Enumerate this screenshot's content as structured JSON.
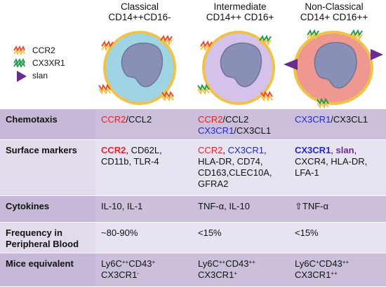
{
  "legend": {
    "items": [
      {
        "label": "CCR2",
        "icon": "ccr2-receptor-icon"
      },
      {
        "label": "CX3XR1",
        "icon": "cx3cr1-receptor-icon"
      },
      {
        "label": "slan",
        "icon": "slan-triangle-icon"
      }
    ]
  },
  "subsets": [
    {
      "name": "Classical",
      "phenotype": "CD14++CD16-"
    },
    {
      "name": "Intermediate",
      "phenotype": "CD14++ CD16+"
    },
    {
      "name": "Non-Classical",
      "phenotype": "CD14+ CD16++"
    }
  ],
  "colors": {
    "classical_cytoplasm": "#9fd4e4",
    "intermediate_cytoplasm": "#d4c2ea",
    "nonclassical_cytoplasm": "#ef9890",
    "nucleus": "#8a8fb8",
    "membrane": "#f0c24a",
    "ccr2": "#e64b2a",
    "cx3cr1": "#1f9a4a",
    "slan": "#6a2c8e",
    "row_dark": "#cbbfdc",
    "row_light": "#e8e3f0",
    "text_red": "#e8232a",
    "text_blue": "#1f2bcc"
  },
  "table": {
    "chemotaxis": {
      "header": "Chemotaxis",
      "classical": {
        "ccr2": "CCR2",
        "rest": "/CCL2"
      },
      "intermediate": {
        "ccr2": "CCR2",
        "rest1": "/CCL2",
        "cx3cr1": "CX3CR1",
        "rest2": "/CX3CL1"
      },
      "nonclassical": {
        "cx3cr1": "CX3CR1",
        "rest": "/CX3CL1"
      }
    },
    "surface_markers": {
      "header": "Surface markers",
      "classical": {
        "ccr2": "CCR2",
        "rest1": ", CD62L,",
        "line2": "CD11b, TLR-4"
      },
      "intermediate": {
        "ccr2": "CCR2",
        "sep": ", ",
        "cx3cr1": "CX3CR1",
        "comma": ",",
        "line2": "HLA-DR, CD74,",
        "line3": "CD163,CLEC10A,",
        "line4": "GFRA2"
      },
      "nonclassical": {
        "cx3cr1": "CX3CR1",
        "sep": ", ",
        "slan": "slan",
        "comma": ",",
        "line2": "CXCR4, HLA-DR,",
        "line3": "LFA-1"
      }
    },
    "cytokines": {
      "header": "Cytokines",
      "classical": "IL-10, IL-1",
      "intermediate": "TNF-α, IL-10",
      "nonclassical": "⇧TNF-α"
    },
    "frequency": {
      "header_line1": "Frequency in",
      "header_line2": "Peripheral Blood",
      "classical": "~80-90%",
      "intermediate": "<15%",
      "nonclassical": "<15%"
    },
    "mice": {
      "header": "Mice equivalent",
      "classical": {
        "ly6c": "Ly6C",
        "ly6c_sup": "++",
        "cd43": "CD43",
        "cd43_sup": "+",
        "cx3cr1": "CX3CR1",
        "cx3cr1_sup": "-"
      },
      "intermediate": {
        "ly6c": "Ly6C",
        "ly6c_sup": "++",
        "cd43": "CD43",
        "cd43_sup": "++",
        "cx3cr1": "CX3CR1",
        "cx3cr1_sup": "+"
      },
      "nonclassical": {
        "ly6c": "Ly6C",
        "ly6c_sup": "+",
        "cd43": "CD43",
        "cd43_sup": "++",
        "cx3cr1": "CX3CR1",
        "cx3cr1_sup": "++"
      }
    }
  }
}
